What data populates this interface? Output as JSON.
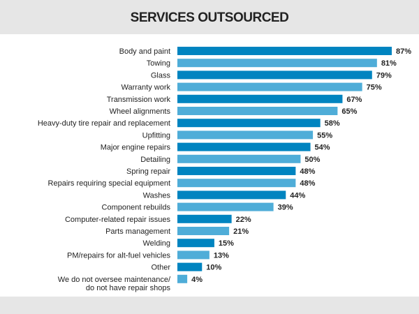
{
  "chart_data": {
    "type": "bar",
    "orientation": "horizontal",
    "title": "SERVICES OUTSOURCED",
    "categories": [
      "Body and paint",
      "Towing",
      "Glass",
      "Warranty work",
      "Transmission work",
      "Wheel alignments",
      "Heavy-duty tire repair and replacement",
      "Upfitting",
      "Major engine repairs",
      "Detailing",
      "Spring repair",
      "Repairs requiring special equipment",
      "Washes",
      "Component rebuilds",
      "Computer-related repair issues",
      "Parts management",
      "Welding",
      "PM/repairs for alt-fuel vehicles",
      "Other",
      "We do not oversee maintenance/do not have repair shops"
    ],
    "values": [
      87,
      81,
      79,
      75,
      67,
      65,
      58,
      55,
      54,
      50,
      48,
      48,
      44,
      39,
      22,
      21,
      15,
      13,
      10,
      4
    ],
    "value_suffix": "%",
    "xlim": [
      0,
      100
    ],
    "grid": false,
    "colors": [
      "#0084c0",
      "#4fadd8"
    ]
  }
}
